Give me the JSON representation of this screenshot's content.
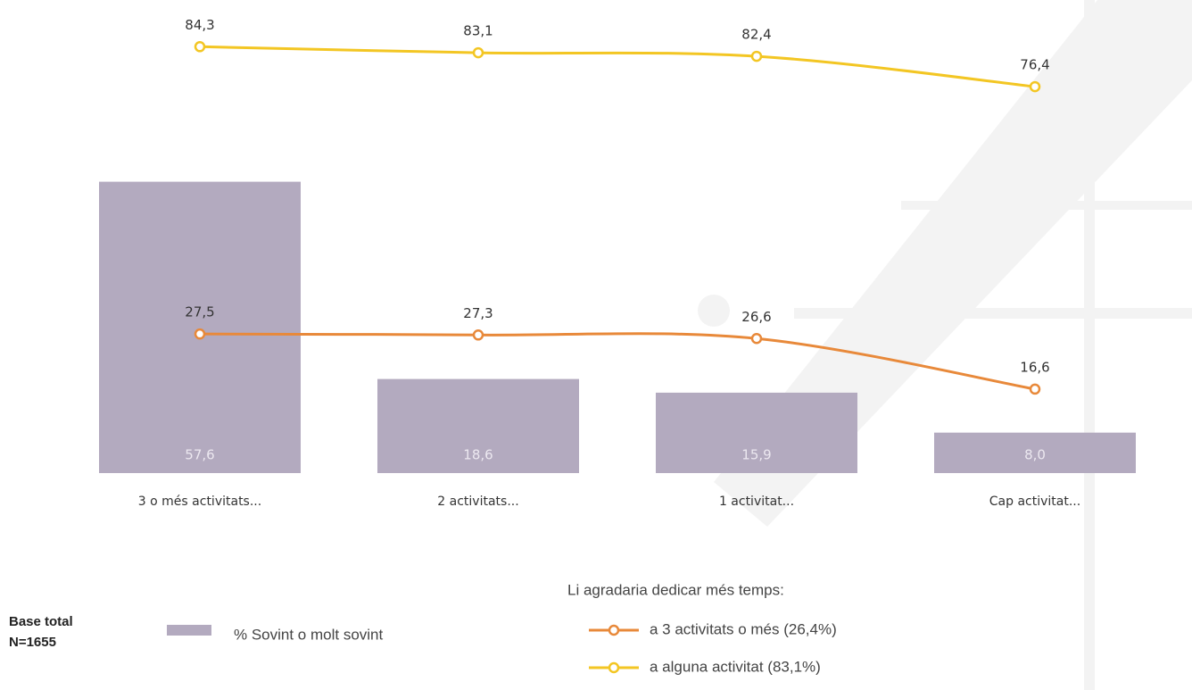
{
  "chart_data": {
    "type": "combo",
    "categories": [
      "3 o més activitats...",
      "2 activitats...",
      "1 activitat...",
      "Cap activitat..."
    ],
    "series": [
      {
        "name": "% Sovint o molt sovint",
        "type": "bar",
        "color": "#b3aabf",
        "values": [
          57.6,
          18.6,
          15.9,
          8.0
        ],
        "value_labels": [
          "57,6",
          "18,6",
          "15,9",
          "8,0"
        ]
      },
      {
        "name": "a 3 activitats o més (26,4%)",
        "type": "line",
        "color": "#e8893a",
        "values": [
          27.5,
          27.3,
          26.6,
          16.6
        ],
        "value_labels": [
          "27,5",
          "27,3",
          "26,6",
          "16,6"
        ]
      },
      {
        "name": "a alguna activitat (83,1%)",
        "type": "line",
        "color": "#f3c623",
        "values": [
          84.3,
          83.1,
          82.4,
          76.4
        ],
        "value_labels": [
          "84,3",
          "83,1",
          "82,4",
          "76,4"
        ]
      }
    ],
    "legend_title": "Li agradaria dedicar més temps:",
    "note": [
      "Base total",
      "N=1655"
    ],
    "ylim": [
      0,
      90
    ]
  }
}
